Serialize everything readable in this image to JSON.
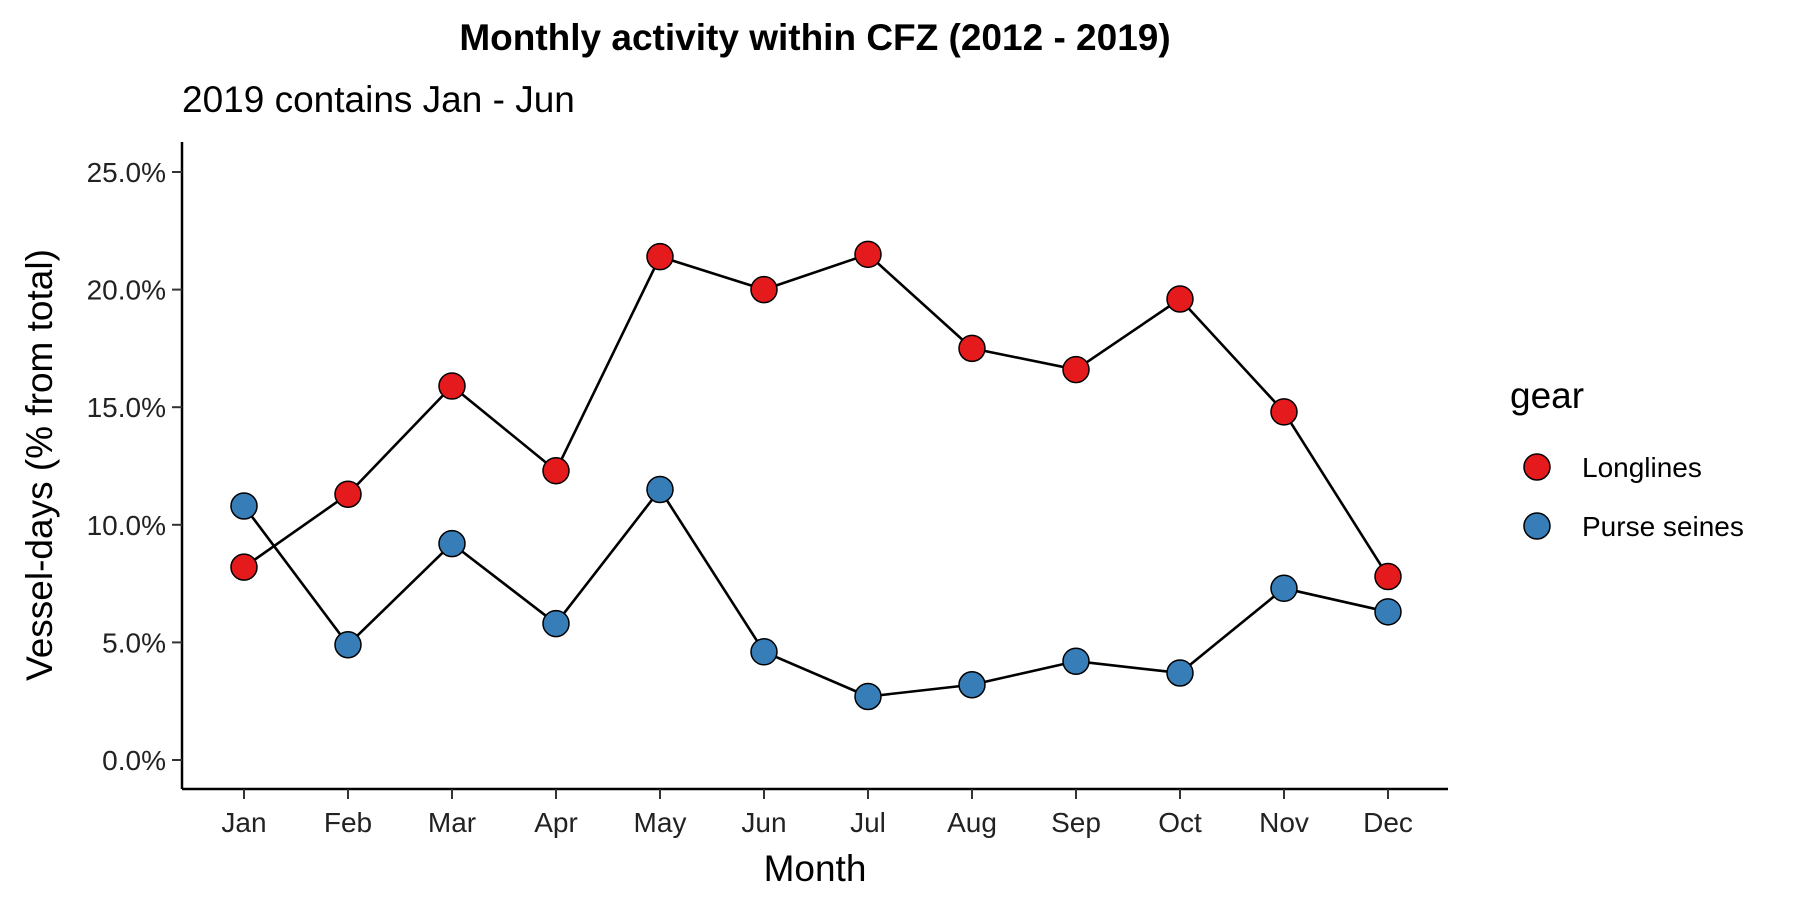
{
  "chart_data": {
    "type": "line",
    "title": "Monthly activity within CFZ (2012 - 2019)",
    "subtitle": "2019 contains Jan - Jun",
    "xlabel": "Month",
    "ylabel": "Vessel-days (% from total)",
    "categories": [
      "Jan",
      "Feb",
      "Mar",
      "Apr",
      "May",
      "Jun",
      "Jul",
      "Aug",
      "Sep",
      "Oct",
      "Nov",
      "Dec"
    ],
    "ylim": [
      0,
      25
    ],
    "yticks": [
      0,
      5,
      10,
      15,
      20,
      25
    ],
    "ytick_labels": [
      "0.0%",
      "5.0%",
      "10.0%",
      "15.0%",
      "20.0%",
      "25.0%"
    ],
    "grid": false,
    "legend": {
      "title": "gear",
      "placement": "right"
    },
    "series": [
      {
        "name": "Longlines",
        "color": "#e41a1c",
        "values": [
          8.2,
          11.3,
          15.9,
          12.3,
          21.4,
          20.0,
          21.5,
          17.5,
          16.6,
          19.6,
          14.8,
          7.8
        ]
      },
      {
        "name": "Purse seines",
        "color": "#377eb8",
        "values": [
          10.8,
          4.9,
          9.2,
          5.8,
          11.5,
          4.6,
          2.7,
          3.2,
          4.2,
          3.7,
          7.3,
          6.3
        ]
      }
    ]
  }
}
